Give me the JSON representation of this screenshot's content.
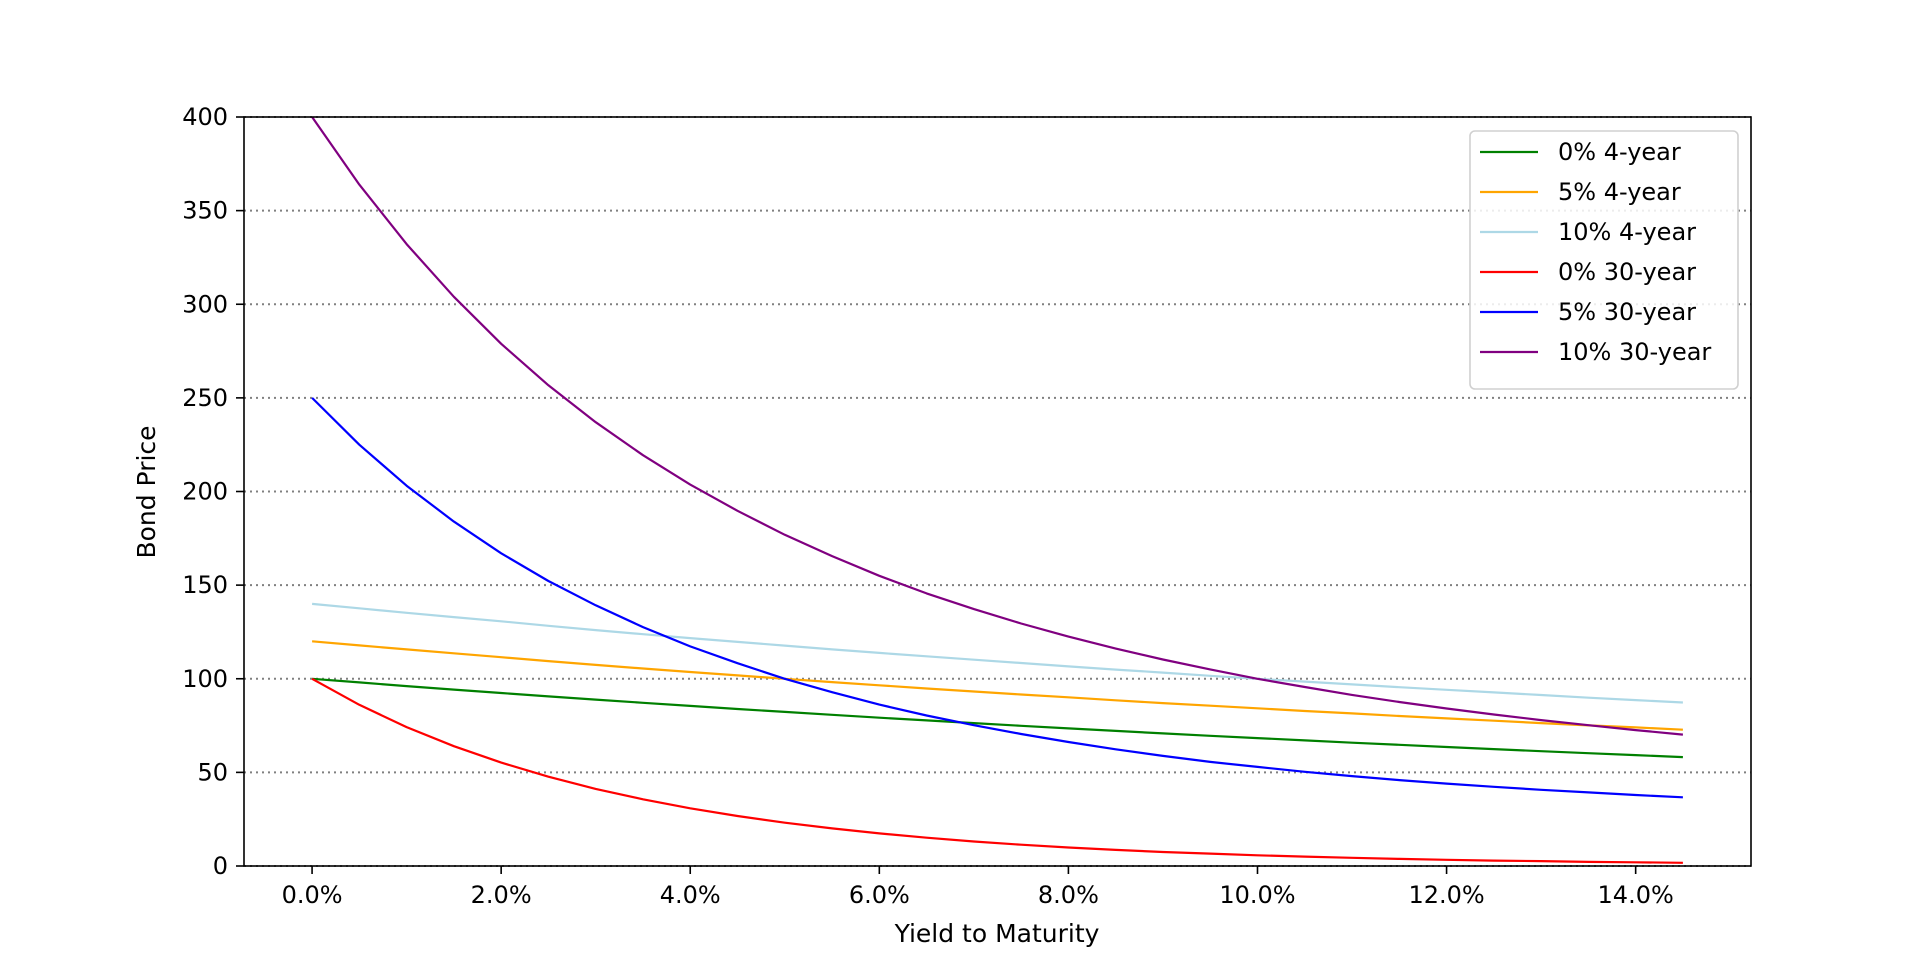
{
  "chart_data": {
    "type": "line",
    "title": "",
    "xlabel": "Yield to Maturity",
    "ylabel": "Bond Price",
    "xlim": [
      -0.0072,
      0.1522
    ],
    "ylim": [
      0,
      400
    ],
    "x_ticks": [
      0,
      0.02,
      0.04,
      0.06,
      0.08,
      0.1,
      0.12,
      0.14
    ],
    "x_tick_labels": [
      "0.0%",
      "2.0%",
      "4.0%",
      "6.0%",
      "8.0%",
      "10.0%",
      "12.0%",
      "14.0%"
    ],
    "y_ticks": [
      0,
      50,
      100,
      150,
      200,
      250,
      300,
      350,
      400
    ],
    "y_tick_labels": [
      "0",
      "50",
      "100",
      "150",
      "200",
      "250",
      "300",
      "350",
      "400"
    ],
    "grid": "horizontal dotted",
    "legend_position": "top-right",
    "x": [
      0,
      0.005,
      0.01,
      0.015,
      0.02,
      0.025,
      0.03,
      0.035,
      0.04,
      0.045,
      0.05,
      0.055,
      0.06,
      0.065,
      0.07,
      0.075,
      0.08,
      0.085,
      0.09,
      0.095,
      0.1,
      0.105,
      0.11,
      0.115,
      0.12,
      0.125,
      0.13,
      0.135,
      0.14,
      0.145
    ],
    "series": [
      {
        "name": "0% 4-year",
        "color": "#008000",
        "values": [
          100.0,
          98.03,
          96.1,
          94.22,
          92.38,
          90.59,
          88.85,
          87.14,
          85.48,
          83.86,
          82.27,
          80.73,
          79.21,
          77.74,
          76.29,
          74.88,
          73.5,
          72.15,
          70.84,
          69.55,
          68.3,
          67.07,
          65.87,
          64.7,
          63.55,
          62.43,
          61.33,
          60.26,
          59.21,
          58.18
        ]
      },
      {
        "name": "5% 4-year",
        "color": "#ffa500",
        "values": [
          120.0,
          117.8,
          115.7,
          113.6,
          111.5,
          109.4,
          107.4,
          105.5,
          103.6,
          101.8,
          100.0,
          98.2,
          96.5,
          94.8,
          93.2,
          91.6,
          90.1,
          88.5,
          87.0,
          85.6,
          84.2,
          82.8,
          81.5,
          80.1,
          78.8,
          77.6,
          76.3,
          75.1,
          74.0,
          72.8
        ]
      },
      {
        "name": "10% 4-year",
        "color": "#add8e6",
        "values": [
          140.0,
          137.6,
          135.2,
          132.9,
          130.7,
          128.3,
          126.0,
          123.8,
          121.7,
          119.7,
          117.7,
          115.7,
          113.8,
          112.0,
          110.2,
          108.4,
          106.6,
          104.9,
          103.3,
          101.6,
          100.0,
          98.5,
          97.0,
          95.5,
          94.1,
          92.7,
          91.3,
          89.9,
          88.6,
          87.3
        ]
      },
      {
        "name": "0% 30-year",
        "color": "#ff0000",
        "values": [
          100.0,
          86.1,
          74.2,
          64.0,
          55.2,
          47.7,
          41.2,
          35.6,
          30.8,
          26.7,
          23.1,
          20.1,
          17.4,
          15.1,
          13.1,
          11.4,
          9.9,
          8.6,
          7.5,
          6.6,
          5.7,
          5.0,
          4.4,
          3.8,
          3.3,
          2.9,
          2.6,
          2.2,
          2.0,
          1.7
        ]
      },
      {
        "name": "5% 30-year",
        "color": "#0000ff",
        "values": [
          250.0,
          225.0,
          203.1,
          183.9,
          167.0,
          152.2,
          139.2,
          127.6,
          117.3,
          108.3,
          100.0,
          92.8,
          86.2,
          80.4,
          75.2,
          70.5,
          66.2,
          62.3,
          58.8,
          55.6,
          52.9,
          50.3,
          48.0,
          45.9,
          44.0,
          42.3,
          40.7,
          39.3,
          37.9,
          36.7
        ]
      },
      {
        "name": "10% 30-year",
        "color": "#800080",
        "values": [
          400.0,
          363.9,
          332.1,
          304.0,
          278.9,
          256.7,
          237.0,
          219.4,
          203.7,
          189.7,
          176.9,
          165.5,
          155.0,
          145.6,
          137.2,
          129.5,
          122.5,
          116.1,
          110.3,
          105.0,
          100.0,
          95.6,
          91.4,
          87.6,
          84.1,
          80.9,
          77.9,
          75.2,
          72.6,
          70.2
        ]
      }
    ]
  }
}
